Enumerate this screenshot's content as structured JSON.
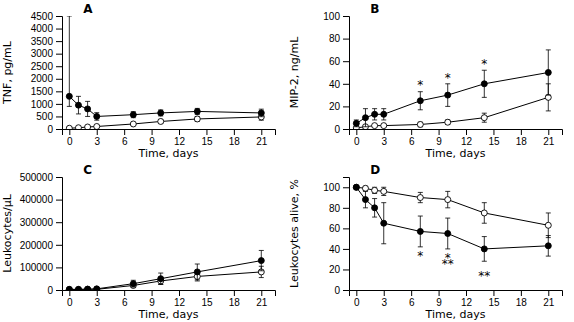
{
  "chart_data": [
    {
      "type": "line",
      "title": "A",
      "xlabel": "Time, days",
      "ylabel": "TNF, pg/mL",
      "x": [
        0,
        1,
        2,
        3,
        7,
        10,
        14,
        21
      ],
      "xlim": [
        -0.8,
        22.5
      ],
      "xticks": [
        0,
        3,
        6,
        9,
        12,
        15,
        18,
        21
      ],
      "ylim": [
        0,
        4500
      ],
      "yticks": [
        0,
        500,
        1000,
        1500,
        2000,
        2500,
        3000,
        3500,
        4000,
        4500
      ],
      "grid": false,
      "series": [
        {
          "color": "#000000",
          "marker": "circle",
          "values": [
            1300,
            950,
            800,
            500,
            570,
            640,
            700,
            640
          ],
          "error_lower": [
            400,
            350,
            300,
            150,
            120,
            120,
            120,
            150
          ],
          "error_upper": [
            3200,
            350,
            300,
            150,
            120,
            120,
            120,
            150
          ]
        },
        {
          "color": "#000000",
          "marker": "circle-open",
          "values": [
            30,
            50,
            80,
            100,
            200,
            300,
            400,
            480
          ],
          "error": [
            10,
            20,
            30,
            40,
            50,
            80,
            100,
            130
          ]
        }
      ]
    },
    {
      "type": "line",
      "title": "B",
      "xlabel": "Time, days",
      "ylabel": "MIP-2, ng/mL",
      "x": [
        0,
        1,
        2,
        3,
        7,
        10,
        14,
        21
      ],
      "xlim": [
        -0.8,
        22.5
      ],
      "xticks": [
        0,
        3,
        6,
        9,
        12,
        15,
        18,
        21
      ],
      "ylim": [
        0,
        100
      ],
      "yticks": [
        0,
        20,
        40,
        60,
        80,
        100
      ],
      "grid": false,
      "series": [
        {
          "color": "#000000",
          "marker": "circle",
          "values": [
            5,
            10,
            13,
            13,
            25,
            30,
            40,
            50
          ],
          "error": [
            3,
            8,
            5,
            5,
            8,
            10,
            12,
            20
          ]
        },
        {
          "color": "#000000",
          "marker": "circle-open",
          "values": [
            1,
            2,
            3,
            3,
            4,
            6,
            10,
            28
          ],
          "error": [
            0.5,
            1,
            1,
            1,
            2,
            2,
            4,
            12
          ]
        }
      ],
      "annotations": [
        {
          "text": "*",
          "x": 7,
          "y": 35
        },
        {
          "text": "*",
          "x": 10,
          "y": 42
        },
        {
          "text": "*",
          "x": 14,
          "y": 54
        }
      ]
    },
    {
      "type": "line",
      "title": "C",
      "xlabel": "Time, days",
      "ylabel": "Leukocytes/μL",
      "x": [
        0,
        1,
        2,
        3,
        7,
        10,
        14,
        21
      ],
      "xlim": [
        -0.8,
        22.5
      ],
      "xticks": [
        0,
        3,
        6,
        9,
        12,
        15,
        18,
        21
      ],
      "ylim": [
        0,
        500000
      ],
      "yticks": [
        0,
        100000,
        200000,
        300000,
        400000,
        500000
      ],
      "grid": false,
      "series": [
        {
          "color": "#000000",
          "marker": "circle",
          "values": [
            3000,
            3000,
            4000,
            5000,
            28000,
            50000,
            80000,
            130000
          ],
          "error": [
            1000,
            1000,
            2000,
            2000,
            15000,
            25000,
            35000,
            45000
          ]
        },
        {
          "color": "#000000",
          "marker": "circle-open",
          "values": [
            2000,
            2000,
            3000,
            3000,
            20000,
            40000,
            60000,
            80000
          ],
          "error": [
            500,
            500,
            1000,
            1000,
            8000,
            15000,
            20000,
            25000
          ]
        }
      ]
    },
    {
      "type": "line",
      "title": "D",
      "xlabel": "Time, days",
      "ylabel": "Leukocytes alive, %",
      "x": [
        0,
        1,
        2,
        3,
        7,
        10,
        14,
        21
      ],
      "xlim": [
        -0.8,
        22.5
      ],
      "xticks": [
        0,
        3,
        6,
        9,
        12,
        15,
        18,
        21
      ],
      "ylim": [
        0,
        110
      ],
      "yticks": [
        0,
        20,
        40,
        60,
        80,
        100
      ],
      "grid": false,
      "series": [
        {
          "color": "#000000",
          "marker": "circle",
          "values": [
            100,
            88,
            80,
            65,
            57,
            55,
            40,
            43
          ],
          "error": [
            2,
            8,
            9,
            20,
            15,
            15,
            12,
            10
          ]
        },
        {
          "color": "#000000",
          "marker": "circle-open",
          "values": [
            100,
            99,
            97,
            96,
            90,
            88,
            75,
            63
          ],
          "error": [
            1,
            2,
            3,
            4,
            5,
            8,
            10,
            12
          ]
        }
      ],
      "annotations": [
        {
          "text": "*",
          "x": 7,
          "y": 38
        },
        {
          "text": "*",
          "x": 10,
          "y": 36
        },
        {
          "text": "**",
          "x": 10,
          "y": 30
        },
        {
          "text": "**",
          "x": 14,
          "y": 18
        }
      ]
    }
  ]
}
